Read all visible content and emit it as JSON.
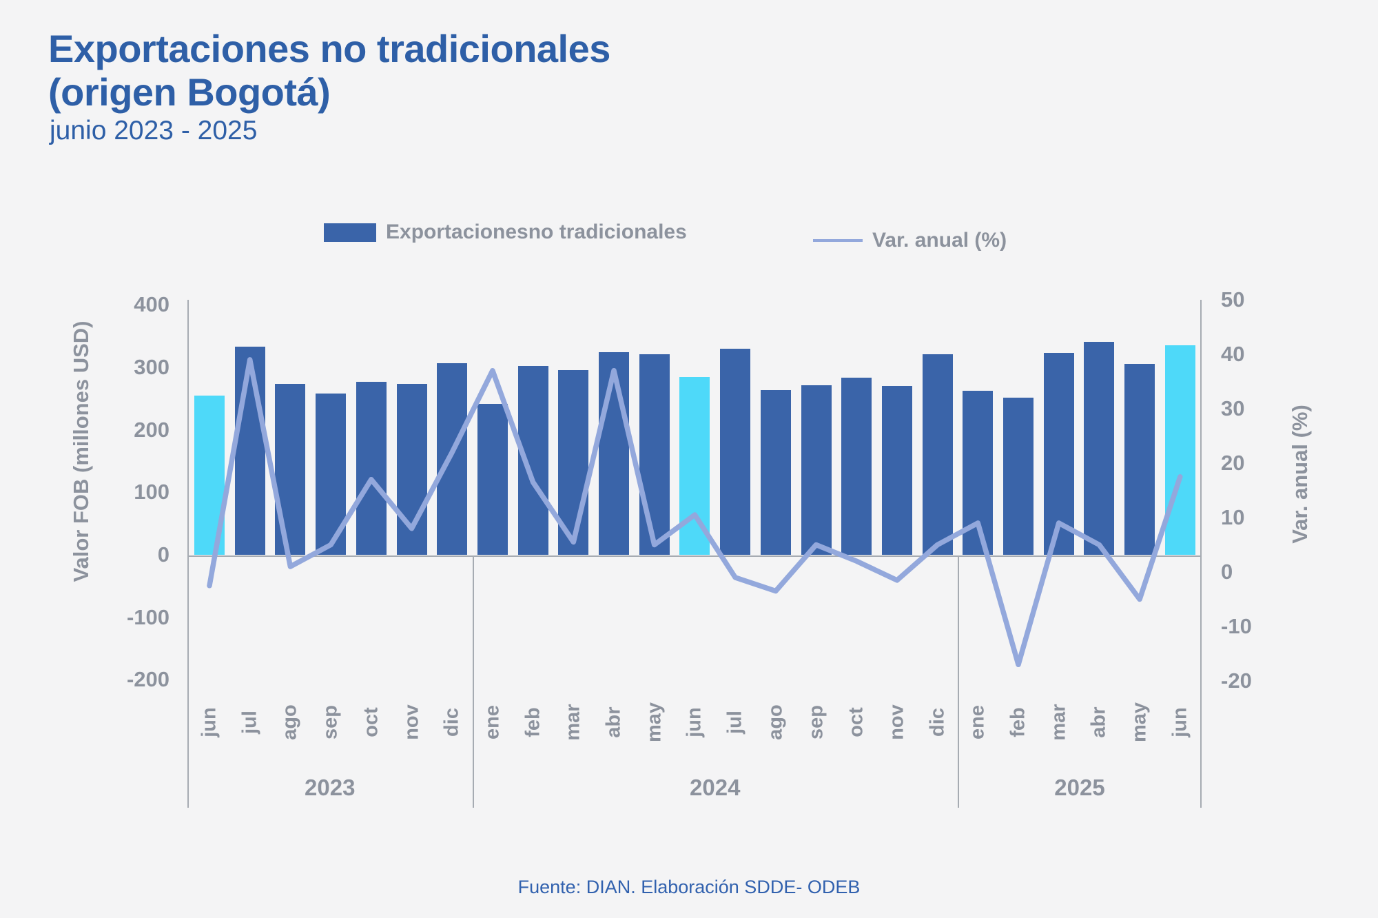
{
  "title": {
    "line1": "Exportaciones no tradicionales",
    "line2": "(origen Bogotá)",
    "subtitle": "junio 2023 - 2025"
  },
  "legend": {
    "bars_label": "Exportacionesno tradicionales",
    "line_label": "Var. anual (%)"
  },
  "left_axis": {
    "title": "Valor FOB (millones USD)",
    "ticks": [
      400,
      300,
      200,
      100,
      0,
      -100,
      -200
    ],
    "min": -200,
    "max": 400
  },
  "right_axis": {
    "title": "Var. anual (%)",
    "ticks": [
      50,
      40,
      30,
      20,
      10,
      0,
      -10,
      -20
    ],
    "min": -20,
    "max": 50
  },
  "footer": "Fuente: DIAN. Elaboración SDDE- ODEB",
  "colors": {
    "background": "#F4F4F5",
    "bar": "#3A64A9",
    "bar_highlight": "#4ED9F9",
    "line": "#93A8DC",
    "title": "#2E5FA7",
    "axis_text": "#8C929D",
    "axis_line": "#A6ABB2",
    "footer_text": "#3161AE"
  },
  "chart_data": {
    "type": "bar+line",
    "title": "Exportaciones no tradicionales (origen Bogotá), junio 2023 - 2025",
    "categories": [
      "jun",
      "jul",
      "ago",
      "sep",
      "oct",
      "nov",
      "dic",
      "ene",
      "feb",
      "mar",
      "abr",
      "may",
      "jun",
      "jul",
      "ago",
      "sep",
      "oct",
      "nov",
      "dic",
      "ene",
      "feb",
      "mar",
      "abr",
      "may",
      "jun"
    ],
    "year_groups": [
      {
        "label": "2023",
        "count": 7
      },
      {
        "label": "2024",
        "count": 12
      },
      {
        "label": "2025",
        "count": 6
      }
    ],
    "series": [
      {
        "name": "Exportacionesno tradicionales",
        "type": "bar",
        "axis": "left",
        "units": "millones USD",
        "values": [
          255,
          333,
          273,
          258,
          277,
          274,
          307,
          241,
          302,
          296,
          324,
          321,
          285,
          330,
          264,
          271,
          283,
          270,
          321,
          262,
          252,
          323,
          341,
          306,
          335
        ],
        "highlight_indices": [
          0,
          12,
          24
        ]
      },
      {
        "name": "Var. anual (%)",
        "type": "line",
        "axis": "right",
        "units": "%",
        "values": [
          -2.5,
          39,
          1,
          5,
          17,
          8,
          22,
          37,
          16.5,
          5.5,
          37,
          5,
          10.5,
          -1,
          -3.5,
          5,
          2,
          -1.5,
          5,
          9,
          -17,
          9,
          5,
          -5,
          17.5
        ]
      }
    ],
    "left_ylim": [
      -200,
      400
    ],
    "right_ylim": [
      -20,
      50
    ],
    "grid": false,
    "legend_position": "top"
  }
}
